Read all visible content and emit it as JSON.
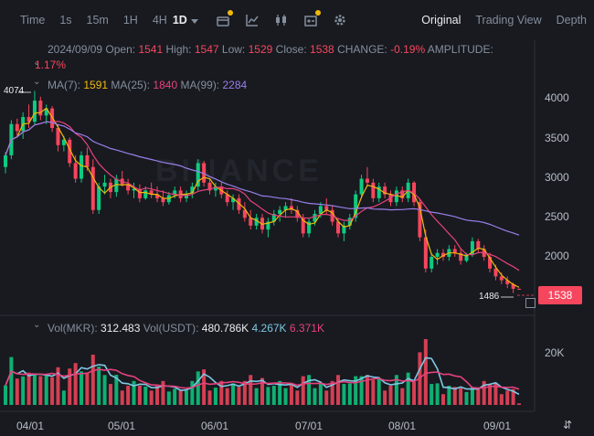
{
  "toolbar": {
    "timeframes": [
      "Time",
      "1s",
      "15m",
      "1H",
      "4H"
    ],
    "active_timeframe": "1D",
    "icons": [
      "candle-type-icon",
      "indicators-icon",
      "chart-style-icon",
      "template-icon",
      "settings-icon"
    ],
    "views": [
      "Original",
      "Trading View",
      "Depth"
    ],
    "active_view": "Original"
  },
  "ohlc": {
    "date": "2024/09/09",
    "open_label": "Open:",
    "open": "1541",
    "high_label": "High:",
    "high": "1547",
    "low_label": "Low:",
    "low": "1529",
    "close_label": "Close:",
    "close": "1538",
    "change_label": "CHANGE:",
    "change": "-0.19%",
    "amplitude_label": "AMPLITUDE:",
    "amplitude": "1.17%"
  },
  "ma": {
    "ma7_label": "MA(7):",
    "ma7": "1591",
    "ma25_label": "MA(25):",
    "ma25": "1840",
    "ma99_label": "MA(99):",
    "ma99": "2284"
  },
  "volume": {
    "vol_mkr_label": "Vol(MKR):",
    "vol_mkr": "312.483",
    "vol_usdt_label": "Vol(USDT):",
    "vol_usdt": "480.786K",
    "ma1": "4.267K",
    "ma2": "6.371K"
  },
  "price_axis": [
    "4000",
    "3500",
    "3000",
    "2500",
    "2000"
  ],
  "volume_axis": [
    "20K"
  ],
  "time_axis": [
    "04/01",
    "05/01",
    "06/01",
    "07/01",
    "08/01",
    "09/01"
  ],
  "last_price": "1538",
  "high_marker": "4074",
  "low_marker": "1486",
  "watermark": "BINANCE",
  "colors": {
    "up": "#0ecb81",
    "down": "#f6465d",
    "ma7": "#f0b90b",
    "ma25": "#e6417c",
    "ma99": "#9a7ee8",
    "vol_ma1": "#7ec8e3",
    "vol_ma2": "#e6417c"
  },
  "chart_data": {
    "type": "candlestick",
    "ylim": [
      1400,
      4150
    ],
    "candles": [
      [
        3100,
        3290,
        3020,
        3250
      ],
      [
        3250,
        3700,
        3200,
        3650
      ],
      [
        3650,
        3720,
        3500,
        3560
      ],
      [
        3560,
        3800,
        3460,
        3740
      ],
      [
        3740,
        3900,
        3600,
        3680
      ],
      [
        3680,
        4074,
        3640,
        3950
      ],
      [
        3950,
        4000,
        3700,
        3760
      ],
      [
        3760,
        3900,
        3650,
        3850
      ],
      [
        3850,
        3880,
        3550,
        3600
      ],
      [
        3600,
        3650,
        3300,
        3380
      ],
      [
        3380,
        3500,
        3300,
        3450
      ],
      [
        3450,
        3480,
        3100,
        3150
      ],
      [
        3150,
        3250,
        2900,
        2950
      ],
      [
        2950,
        3300,
        2900,
        3250
      ],
      [
        3250,
        3350,
        3050,
        3100
      ],
      [
        3100,
        3200,
        2500,
        2550
      ],
      [
        2550,
        2900,
        2500,
        2850
      ],
      [
        2850,
        3000,
        2750,
        2900
      ],
      [
        2900,
        2950,
        2700,
        2780
      ],
      [
        2780,
        3000,
        2720,
        2950
      ],
      [
        2950,
        3050,
        2850,
        2880
      ],
      [
        2880,
        2950,
        2750,
        2800
      ],
      [
        2800,
        2900,
        2700,
        2820
      ],
      [
        2820,
        2880,
        2650,
        2700
      ],
      [
        2700,
        2850,
        2680,
        2800
      ],
      [
        2800,
        2900,
        2700,
        2750
      ],
      [
        2750,
        2850,
        2650,
        2700
      ],
      [
        2700,
        2800,
        2600,
        2650
      ],
      [
        2650,
        2780,
        2620,
        2740
      ],
      [
        2740,
        2850,
        2700,
        2800
      ],
      [
        2800,
        2850,
        2650,
        2700
      ],
      [
        2700,
        2800,
        2650,
        2760
      ],
      [
        2760,
        2900,
        2700,
        2850
      ],
      [
        2850,
        3200,
        2800,
        3150
      ],
      [
        3150,
        3180,
        2850,
        2900
      ],
      [
        2900,
        2950,
        2750,
        2800
      ],
      [
        2800,
        2900,
        2720,
        2850
      ],
      [
        2850,
        2900,
        2700,
        2750
      ],
      [
        2750,
        2800,
        2600,
        2650
      ],
      [
        2650,
        2750,
        2550,
        2700
      ],
      [
        2700,
        2750,
        2500,
        2550
      ],
      [
        2550,
        2650,
        2400,
        2450
      ],
      [
        2450,
        2550,
        2300,
        2350
      ],
      [
        2350,
        2500,
        2300,
        2450
      ],
      [
        2450,
        2500,
        2250,
        2300
      ],
      [
        2300,
        2450,
        2200,
        2400
      ],
      [
        2400,
        2550,
        2350,
        2500
      ],
      [
        2500,
        2600,
        2400,
        2550
      ],
      [
        2550,
        2650,
        2450,
        2600
      ],
      [
        2600,
        2700,
        2500,
        2550
      ],
      [
        2550,
        2600,
        2400,
        2450
      ],
      [
        2450,
        2500,
        2200,
        2250
      ],
      [
        2250,
        2450,
        2200,
        2400
      ],
      [
        2400,
        2550,
        2350,
        2500
      ],
      [
        2500,
        2650,
        2450,
        2600
      ],
      [
        2600,
        2700,
        2500,
        2550
      ],
      [
        2550,
        2600,
        2350,
        2400
      ],
      [
        2400,
        2450,
        2200,
        2250
      ],
      [
        2250,
        2400,
        2150,
        2350
      ],
      [
        2350,
        2500,
        2300,
        2450
      ],
      [
        2450,
        2800,
        2400,
        2750
      ],
      [
        2750,
        3000,
        2700,
        2950
      ],
      [
        2950,
        3100,
        2850,
        2900
      ],
      [
        2900,
        2950,
        2650,
        2700
      ],
      [
        2700,
        2900,
        2650,
        2850
      ],
      [
        2850,
        2900,
        2700,
        2750
      ],
      [
        2750,
        2800,
        2600,
        2650
      ],
      [
        2650,
        2850,
        2600,
        2800
      ],
      [
        2800,
        2850,
        2650,
        2700
      ],
      [
        2700,
        2950,
        2650,
        2900
      ],
      [
        2900,
        2920,
        2600,
        2650
      ],
      [
        2650,
        2700,
        2150,
        2200
      ],
      [
        2200,
        2300,
        1750,
        1800
      ],
      [
        1800,
        2000,
        1750,
        1950
      ],
      [
        1950,
        2050,
        1850,
        2000
      ],
      [
        2000,
        2050,
        1900,
        1950
      ],
      [
        1950,
        2100,
        1900,
        2050
      ],
      [
        2050,
        2100,
        1950,
        2000
      ],
      [
        2000,
        2050,
        1850,
        1900
      ],
      [
        1900,
        2000,
        1880,
        1980
      ],
      [
        1980,
        2200,
        1950,
        2150
      ],
      [
        2150,
        2180,
        2000,
        2050
      ],
      [
        2050,
        2100,
        1900,
        1950
      ],
      [
        1950,
        2000,
        1750,
        1800
      ],
      [
        1800,
        1850,
        1650,
        1700
      ],
      [
        1700,
        1750,
        1600,
        1650
      ],
      [
        1650,
        1700,
        1550,
        1600
      ],
      [
        1600,
        1620,
        1486,
        1541
      ],
      [
        1541,
        1547,
        1529,
        1538
      ]
    ]
  }
}
